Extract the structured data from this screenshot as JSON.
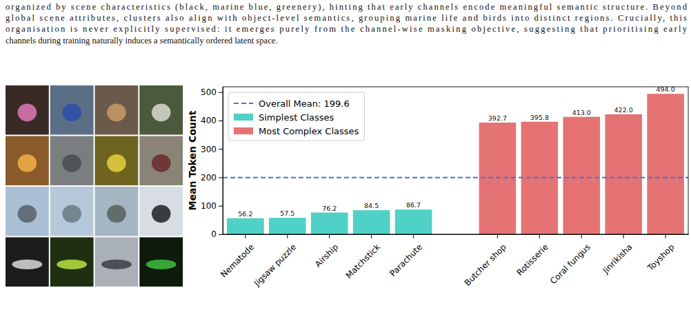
{
  "paper": {
    "paragraph_lines": [
      "organized by scene characteristics (black, marine blue, greenery), hinting that early channels encode meaningful semantic structure. Beyond",
      "global scene attributes, clusters also align with object-level semantics, grouping marine life and birds into distinct regions. Crucially, this",
      "organisation is never explicitly supervised: it emerges purely from the channel-wise masking objective, suggesting that prioritising early",
      "channels during training naturally induces a semantically ordered latent space."
    ]
  },
  "chart_data": {
    "type": "bar",
    "y_label": "Mean Token Count",
    "categories": [
      "Nematode",
      "Jigsaw puzzle",
      "Airship",
      "Matchstick",
      "Parachute",
      null,
      "Butcher shop",
      "Rotisserie",
      "Coral fungus",
      "Jinrikisha",
      "Toyshop"
    ],
    "series": [
      {
        "name": "Simplest Classes",
        "color": "#4fd1c5",
        "values": [
          56.2,
          57.5,
          76.2,
          84.5,
          86.7,
          null,
          null,
          null,
          null,
          null,
          null
        ],
        "value_labels": [
          "56.2",
          "57.5",
          "76.2",
          "84.5",
          "86.7",
          null,
          null,
          null,
          null,
          null,
          null
        ]
      },
      {
        "name": "Most Complex Classes",
        "color": "#e57373",
        "values": [
          null,
          null,
          null,
          null,
          null,
          null,
          392.7,
          395.8,
          413.0,
          422.0,
          494.0
        ],
        "value_labels": [
          null,
          null,
          null,
          null,
          null,
          null,
          "392.7",
          "395.8",
          "413.0",
          "422.0",
          "494.0"
        ]
      }
    ],
    "mean_line": {
      "value": 199.6,
      "label": "Overall Mean: 199.6",
      "color": "#4a6fdc",
      "line_style": "dashed"
    },
    "ylim": [
      0,
      518.7
    ],
    "yticks": [
      0,
      100,
      200,
      300,
      400,
      500
    ],
    "grid": false,
    "legend": "upper left",
    "data_labels": true
  }
}
